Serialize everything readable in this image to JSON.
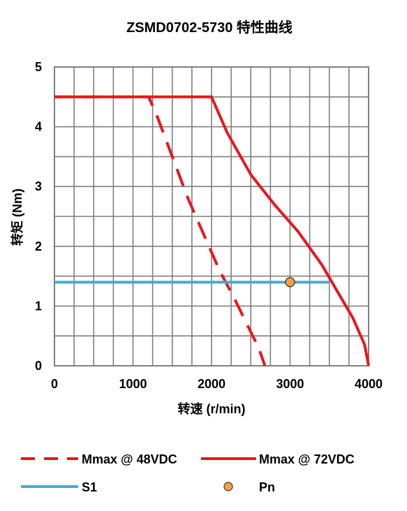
{
  "chart_data": {
    "type": "line",
    "title": "ZSMD0702-5730 特性曲线",
    "xlabel": "转速 (r/min)",
    "ylabel": "转矩 (Nm)",
    "xlim": [
      0,
      4000
    ],
    "ylim": [
      0,
      5
    ],
    "grid": true,
    "legend_position": "bottom",
    "x_ticks": [
      "0",
      "1000",
      "2000",
      "3000",
      "4000"
    ],
    "y_ticks": [
      "0",
      "1",
      "2",
      "3",
      "4",
      "5"
    ],
    "series": [
      {
        "name": "Mmax @ 48VDC",
        "color": "#e8171e",
        "style": "dashed",
        "points": [
          [
            0,
            4.5
          ],
          [
            1200,
            4.5
          ],
          [
            1300,
            4.2
          ],
          [
            1500,
            3.5
          ],
          [
            1700,
            2.8
          ],
          [
            1900,
            2.2
          ],
          [
            2100,
            1.6
          ],
          [
            2300,
            1.1
          ],
          [
            2450,
            0.7
          ],
          [
            2600,
            0.3
          ],
          [
            2680,
            0.0
          ]
        ]
      },
      {
        "name": "Mmax @ 72VDC",
        "color": "#e8171e",
        "style": "solid",
        "points": [
          [
            0,
            4.5
          ],
          [
            2000,
            4.5
          ],
          [
            2200,
            3.9
          ],
          [
            2500,
            3.2
          ],
          [
            2800,
            2.7
          ],
          [
            3100,
            2.25
          ],
          [
            3400,
            1.7
          ],
          [
            3600,
            1.25
          ],
          [
            3800,
            0.8
          ],
          [
            3950,
            0.35
          ],
          [
            4000,
            0.0
          ]
        ]
      },
      {
        "name": "S1",
        "color": "#4aaac8",
        "style": "solid",
        "points": [
          [
            0,
            1.4
          ],
          [
            3500,
            1.4
          ]
        ]
      },
      {
        "name": "Pn",
        "color": "#f5a142",
        "style": "marker",
        "points": [
          [
            3000,
            1.4
          ]
        ]
      }
    ]
  }
}
